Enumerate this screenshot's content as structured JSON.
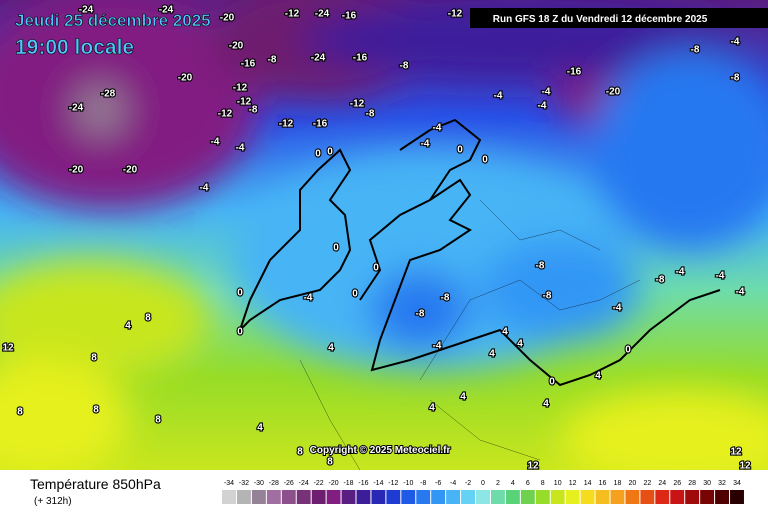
{
  "header": {
    "date": "Jeudi 25 décembre 2025",
    "time": "19:00 locale",
    "run": "Run GFS 18 Z du Vendredi 12 décembre 2025"
  },
  "copyright": "Copyright © 2025 Meteociel.fr",
  "footer": {
    "title": "Température 850hPa",
    "lead": "(+ 312h)"
  },
  "contour_labels": [
    -24,
    -24,
    -20,
    -12,
    -24,
    -16,
    -12,
    -20,
    -16,
    -8,
    -24,
    -16,
    -8,
    -20,
    -28,
    -24,
    -12,
    -12,
    -8,
    -12,
    -12,
    -16,
    -12,
    -8,
    -4,
    -4,
    -20,
    -20,
    -4,
    -16,
    -20,
    -8,
    -4,
    -8,
    -4,
    -4,
    -4,
    -4,
    0,
    0,
    -4,
    0,
    0,
    0,
    0,
    0,
    0,
    -4,
    -8,
    -8,
    -8,
    -8,
    -8,
    -4,
    -4,
    -4,
    -4,
    0,
    0,
    4,
    8,
    8,
    12,
    4,
    -4,
    4,
    4,
    4,
    0,
    4,
    4,
    4,
    4,
    8,
    8,
    8,
    4,
    8,
    8,
    12,
    12,
    12
  ],
  "legend": {
    "values": [
      -34,
      -32,
      -30,
      -28,
      -26,
      -24,
      -22,
      -20,
      -18,
      -16,
      -14,
      -12,
      -10,
      -8,
      -6,
      -4,
      -2,
      0,
      2,
      4,
      6,
      8,
      10,
      12,
      14,
      16,
      18,
      20,
      22,
      24,
      26,
      28,
      30,
      32,
      34
    ],
    "colors": [
      "#d2d2d2",
      "#b4b4b4",
      "#968296",
      "#a06ea0",
      "#8c508c",
      "#783278",
      "#6e1e6e",
      "#821e82",
      "#5a1e82",
      "#3c1e9b",
      "#2828b4",
      "#1e3cd2",
      "#1e5ae6",
      "#2878f0",
      "#3296f5",
      "#46b4f5",
      "#64d2f5",
      "#8ce6e6",
      "#6edcaa",
      "#5ad278",
      "#6ed250",
      "#96dc28",
      "#c8e61e",
      "#e6f01e",
      "#f5dc1e",
      "#f5be1e",
      "#f5a01e",
      "#f07814",
      "#e65014",
      "#dc2814",
      "#c81414",
      "#a00a0a",
      "#780505",
      "#500000",
      "#280000"
    ]
  }
}
